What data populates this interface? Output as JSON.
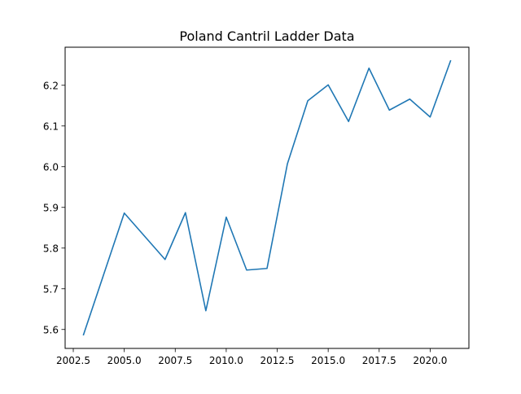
{
  "chart_data": {
    "type": "line",
    "title": "Poland Cantril Ladder Data",
    "xlabel": "",
    "ylabel": "",
    "x": [
      2003,
      2005,
      2007,
      2008,
      2009,
      2010,
      2011,
      2012,
      2013,
      2014,
      2015,
      2016,
      2017,
      2018,
      2019,
      2020,
      2021
    ],
    "series": [
      {
        "values": [
          5.587,
          5.886,
          5.772,
          5.887,
          5.646,
          5.876,
          5.746,
          5.75,
          6.007,
          6.162,
          6.201,
          6.111,
          6.242,
          6.139,
          6.166,
          6.122,
          6.26
        ],
        "color": "#1f77b4"
      }
    ],
    "xlim": [
      2002.1,
      2021.9
    ],
    "ylim": [
      5.5535,
      6.2935
    ],
    "xticks": [
      2002.5,
      2005.0,
      2007.5,
      2010.0,
      2012.5,
      2015.0,
      2017.5,
      2020.0
    ],
    "xtick_labels": [
      "2002.5",
      "2005.0",
      "2007.5",
      "2010.0",
      "2012.5",
      "2015.0",
      "2017.5",
      "2020.0"
    ],
    "yticks": [
      5.6,
      5.7,
      5.8,
      5.9,
      6.0,
      6.1,
      6.2
    ],
    "ytick_labels": [
      "5.6",
      "5.7",
      "5.8",
      "5.9",
      "6.0",
      "6.1",
      "6.2"
    ],
    "grid": false,
    "legend": "none"
  }
}
